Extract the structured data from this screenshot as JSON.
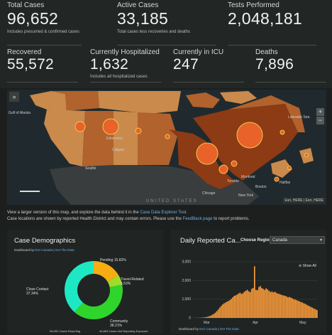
{
  "stats": {
    "total_cases": {
      "label": "Total Cases",
      "value": "96,652",
      "sub": "Includes presumed & confirmed cases"
    },
    "active_cases": {
      "label": "Active Cases",
      "value": "33,185",
      "sub": "Total cases less recoveries and deaths"
    },
    "tests_performed": {
      "label": "Tests Performed",
      "value": "2,048,181"
    },
    "recovered": {
      "label": "Recovered",
      "value": "55,572"
    },
    "hospitalized": {
      "label": "Currently Hospitalized",
      "value": "1,632",
      "sub": "Includes all hospitalized cases"
    },
    "icu": {
      "label": "Currently in ICU",
      "value": "247"
    },
    "deaths": {
      "label": "Deaths",
      "value": "7,896"
    }
  },
  "map": {
    "expand_icon": "double-chevron-right-icon",
    "zoom_in": "+",
    "zoom_out": "−",
    "country_label": "UNITED STATES",
    "attribution": "Esri, HERE | Esri, HERE",
    "labels": {
      "gulf": "Gulf of Alaska",
      "labrador": "Labrador Sea",
      "edmonton": "Edmonton",
      "calgary": "Calgary",
      "seattle": "Seattle",
      "chicago": "Chicago",
      "toronto": "Toronto",
      "montreal": "Montreal",
      "newyork": "New York",
      "halifax": "Halifax",
      "boston": "Boston"
    },
    "colors": {
      "water": "#202a2e",
      "land_us": "#3a3d3e",
      "light": "#c98a4c",
      "mid": "#b1622d",
      "dark": "#8c3b14",
      "circle": "#e8622a",
      "ring": "#f3c84a"
    }
  },
  "note": {
    "line1_a": "View a larger version of this map, and explore the data behind it in the",
    "line1_link": "Case Data Explorer Tool",
    "line2_a": "Case locations are shown by reported Health District and may contain errors. Please use the",
    "line2_link": "FeedBack page",
    "line2_b": "to report problems."
  },
  "demographics": {
    "title": "Case Demographics",
    "dashboard_by": "Dashboard by",
    "link_esri": "Esri Canada",
    "link_data": "Get The Data",
    "labels": {
      "pending": "Pending 15.82%",
      "travel": "Travel-Related",
      "travel_pct": "5.53%",
      "close": "Close Contact",
      "close_pct": "37.34%",
      "community": "Community",
      "community_pct": "38.21%"
    },
    "footer_left": "96,652 Cases Reporting",
    "footer_right": "46,863 Cases Not Reporting Exposure",
    "colors": {
      "close": "#1ee8c3",
      "pending": "#f6ad12",
      "travel": "#9edc2a",
      "community": "#2fd52b"
    }
  },
  "daily": {
    "title": "Daily Reported Ca...",
    "region_label": "Choose Region:",
    "region_value": "Canada",
    "show_all": "Show All",
    "dashboard_by": "Dashboard by",
    "link_esri": "Esri Canada",
    "link_data": "Get The Data",
    "bar_color": "#f79a3a"
  },
  "chart_data": {
    "type": "bar",
    "title": "Daily Reported Ca...",
    "x_ticks": [
      "Mar",
      "Apr",
      "May"
    ],
    "y_ticks": [
      "3,000",
      "2,000",
      "1,000",
      "0"
    ],
    "ylim": [
      0,
      3000
    ],
    "values": [
      2,
      3,
      4,
      6,
      8,
      12,
      18,
      25,
      35,
      50,
      70,
      95,
      130,
      170,
      220,
      280,
      360,
      450,
      550,
      640,
      720,
      780,
      820,
      870,
      900,
      950,
      1020,
      1100,
      1180,
      1200,
      1250,
      1300,
      1350,
      1280,
      1320,
      1400,
      1450,
      1500,
      1420,
      1380,
      1550,
      1600,
      2760,
      1500,
      1480,
      1650,
      1700,
      1600,
      1550,
      1500,
      1580,
      1520,
      1450,
      1380,
      1420,
      1360,
      1400,
      1340,
      1300,
      1280,
      1250,
      1220,
      1200,
      1180,
      1150,
      1100,
      1120,
      1080,
      1050,
      1000,
      980,
      950,
      920,
      880,
      850,
      820,
      780,
      750,
      700,
      660,
      620,
      580,
      540,
      500,
      460,
      420
    ]
  }
}
